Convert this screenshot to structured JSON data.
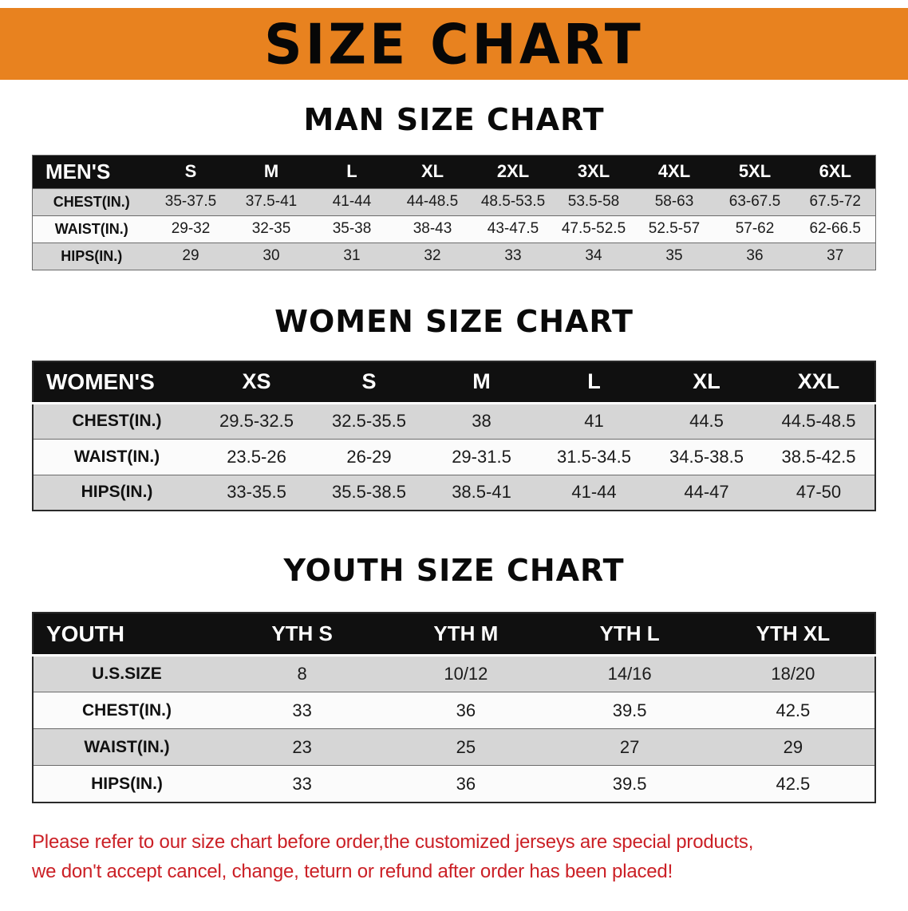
{
  "banner": {
    "title": "SIZE CHART",
    "bg_color": "#e8821f",
    "text_color": "#070707"
  },
  "sections": [
    {
      "heading": "MAN SIZE CHART",
      "table": {
        "label": "MEN'S",
        "columns": [
          "S",
          "M",
          "L",
          "XL",
          "2XL",
          "3XL",
          "4XL",
          "5XL",
          "6XL"
        ],
        "rows": [
          {
            "label": "CHEST(IN.)",
            "values": [
              "35-37.5",
              "37.5-41",
              "41-44",
              "44-48.5",
              "48.5-53.5",
              "53.5-58",
              "58-63",
              "63-67.5",
              "67.5-72"
            ]
          },
          {
            "label": "WAIST(IN.)",
            "values": [
              "29-32",
              "32-35",
              "35-38",
              "38-43",
              "43-47.5",
              "47.5-52.5",
              "52.5-57",
              "57-62",
              "62-66.5"
            ]
          },
          {
            "label": "HIPS(IN.)",
            "values": [
              "29",
              "30",
              "31",
              "32",
              "33",
              "34",
              "35",
              "36",
              "37"
            ]
          }
        ]
      }
    },
    {
      "heading": "WOMEN SIZE CHART",
      "table": {
        "label": "WOMEN'S",
        "columns": [
          "XS",
          "S",
          "M",
          "L",
          "XL",
          "XXL"
        ],
        "rows": [
          {
            "label": "CHEST(IN.)",
            "values": [
              "29.5-32.5",
              "32.5-35.5",
              "38",
              "41",
              "44.5",
              "44.5-48.5"
            ]
          },
          {
            "label": "WAIST(IN.)",
            "values": [
              "23.5-26",
              "26-29",
              "29-31.5",
              "31.5-34.5",
              "34.5-38.5",
              "38.5-42.5"
            ]
          },
          {
            "label": "HIPS(IN.)",
            "values": [
              "33-35.5",
              "35.5-38.5",
              "38.5-41",
              "41-44",
              "44-47",
              "47-50"
            ]
          }
        ]
      }
    },
    {
      "heading": "YOUTH SIZE CHART",
      "table": {
        "label": "YOUTH",
        "columns": [
          "YTH S",
          "YTH M",
          "YTH L",
          "YTH XL"
        ],
        "rows": [
          {
            "label": "U.S.SIZE",
            "values": [
              "8",
              "10/12",
              "14/16",
              "18/20"
            ]
          },
          {
            "label": "CHEST(IN.)",
            "values": [
              "33",
              "36",
              "39.5",
              "42.5"
            ]
          },
          {
            "label": "WAIST(IN.)",
            "values": [
              "23",
              "25",
              "27",
              "29"
            ]
          },
          {
            "label": "HIPS(IN.)",
            "values": [
              "33",
              "36",
              "39.5",
              "42.5"
            ]
          }
        ]
      }
    }
  ],
  "footer": {
    "line1": "Please refer to our size chart before order,the customized jerseys are special products,",
    "line2": "we don't accept cancel, change, teturn or refund after order has been placed!",
    "text_color": "#cb2026"
  }
}
